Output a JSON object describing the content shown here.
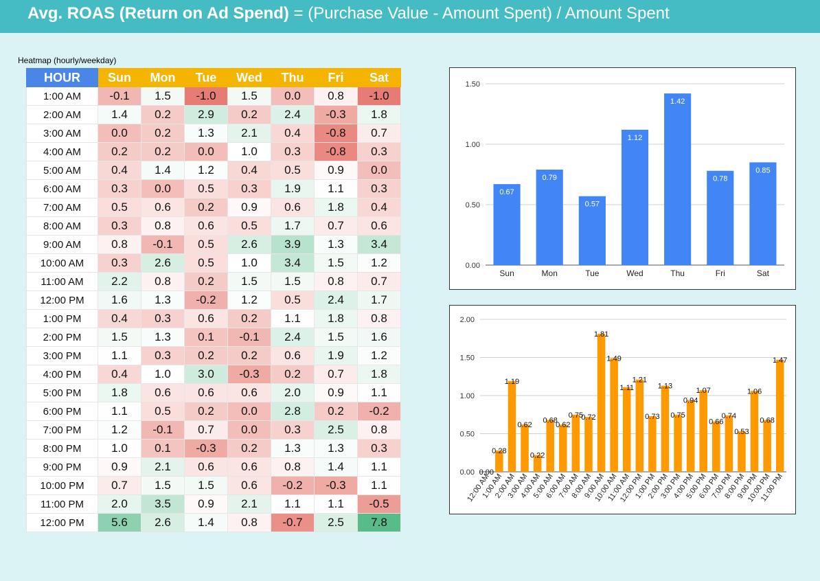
{
  "header": {
    "title_bold": "Avg. ROAS (Return on Ad Spend)",
    "title_rest": " = (Purchase Value - Amount Spent) / Amount Spent"
  },
  "heatmap": {
    "title": "Heatmap (hourly/weekday)",
    "hour_header": "HOUR",
    "days": [
      "Sun",
      "Mon",
      "Tue",
      "Wed",
      "Thu",
      "Fri",
      "Sat"
    ],
    "colors": {
      "neg": "#e67c73",
      "mid": "#ffffff",
      "pos": "#57bb8a",
      "header_day": "#f4b400",
      "header_hour": "#4a86e8"
    },
    "rows": [
      {
        "hour": "1:00 AM",
        "values": [
          -0.1,
          1.5,
          -1.0,
          1.5,
          0.0,
          0.8,
          -1.0
        ]
      },
      {
        "hour": "2:00 AM",
        "values": [
          1.4,
          0.2,
          2.9,
          0.2,
          2.4,
          -0.3,
          1.8
        ]
      },
      {
        "hour": "3:00 AM",
        "values": [
          0.0,
          0.2,
          1.3,
          2.1,
          0.4,
          -0.8,
          0.7
        ]
      },
      {
        "hour": "4:00 AM",
        "values": [
          0.2,
          0.2,
          0.0,
          1.0,
          0.3,
          -0.8,
          0.3
        ]
      },
      {
        "hour": "5:00 AM",
        "values": [
          0.4,
          1.4,
          1.2,
          0.4,
          0.5,
          0.9,
          0.0
        ]
      },
      {
        "hour": "6:00 AM",
        "values": [
          0.3,
          0.0,
          0.5,
          0.3,
          1.9,
          1.1,
          0.3
        ]
      },
      {
        "hour": "7:00 AM",
        "values": [
          0.5,
          0.6,
          0.2,
          0.9,
          0.6,
          1.8,
          0.4
        ]
      },
      {
        "hour": "8:00 AM",
        "values": [
          0.3,
          0.8,
          0.6,
          0.5,
          1.7,
          0.7,
          0.6
        ]
      },
      {
        "hour": "9:00 AM",
        "values": [
          0.8,
          -0.1,
          0.5,
          2.6,
          3.9,
          1.3,
          3.4
        ]
      },
      {
        "hour": "10:00 AM",
        "values": [
          0.3,
          2.6,
          0.5,
          1.0,
          3.4,
          1.5,
          1.2
        ]
      },
      {
        "hour": "11:00 AM",
        "values": [
          2.2,
          0.8,
          0.2,
          1.5,
          1.5,
          0.8,
          0.7
        ]
      },
      {
        "hour": "12:00 PM",
        "values": [
          1.6,
          1.3,
          -0.2,
          1.2,
          0.5,
          2.4,
          1.7
        ]
      },
      {
        "hour": "1:00 PM",
        "values": [
          0.4,
          0.3,
          0.6,
          0.2,
          1.1,
          1.8,
          0.8
        ]
      },
      {
        "hour": "2:00 PM",
        "values": [
          1.5,
          1.3,
          0.1,
          -0.1,
          2.4,
          1.5,
          1.6
        ]
      },
      {
        "hour": "3:00 PM",
        "values": [
          1.1,
          0.3,
          0.2,
          0.2,
          0.6,
          1.9,
          1.2
        ]
      },
      {
        "hour": "4:00 PM",
        "values": [
          0.4,
          1.0,
          3.0,
          -0.3,
          0.2,
          0.7,
          1.8
        ]
      },
      {
        "hour": "5:00 PM",
        "values": [
          1.8,
          0.6,
          0.6,
          0.6,
          2.0,
          0.9,
          1.1
        ]
      },
      {
        "hour": "6:00 PM",
        "values": [
          1.1,
          0.5,
          0.2,
          0.0,
          2.8,
          0.2,
          -0.2
        ]
      },
      {
        "hour": "7:00 PM",
        "values": [
          1.2,
          -0.1,
          0.7,
          0.0,
          0.3,
          2.5,
          0.8
        ]
      },
      {
        "hour": "8:00 PM",
        "values": [
          1.0,
          0.1,
          -0.3,
          0.2,
          1.3,
          1.3,
          0.3
        ]
      },
      {
        "hour": "9:00 PM",
        "values": [
          0.9,
          2.1,
          0.6,
          0.6,
          0.8,
          1.4,
          1.1
        ]
      },
      {
        "hour": "10:00 PM",
        "values": [
          0.7,
          1.5,
          1.5,
          0.6,
          -0.2,
          -0.3,
          1.1
        ]
      },
      {
        "hour": "11:00 PM",
        "values": [
          2.0,
          3.5,
          0.9,
          2.1,
          1.1,
          1.1,
          -0.5
        ]
      },
      {
        "hour": "12:00 PM",
        "values": [
          5.6,
          2.6,
          1.4,
          0.8,
          -0.7,
          2.5,
          7.8
        ]
      }
    ]
  },
  "chart_data": [
    {
      "type": "bar",
      "categories": [
        "Sun",
        "Mon",
        "Tue",
        "Wed",
        "Thu",
        "Fri",
        "Sat"
      ],
      "values": [
        0.67,
        0.79,
        0.57,
        1.12,
        1.42,
        0.78,
        0.85
      ],
      "labels": [
        "0.67",
        "0.79",
        "0.57",
        "1.12",
        "1.42",
        "0.78",
        "0.85"
      ],
      "yticks": [
        "0.00",
        "0.50",
        "1.00",
        "1.50"
      ],
      "ytick_values": [
        0,
        0.5,
        1.0,
        1.5
      ],
      "ylim": [
        0,
        1.5
      ],
      "color": "#4285f4",
      "grid": true
    },
    {
      "type": "bar",
      "categories": [
        "12:00 AM",
        "1:00 AM",
        "2:00 AM",
        "3:00 AM",
        "4:00 AM",
        "5:00 AM",
        "6:00 AM",
        "7:00 AM",
        "8:00 AM",
        "9:00 AM",
        "10:00 AM",
        "11:00 AM",
        "12:00 PM",
        "1:00 PM",
        "2:00 PM",
        "3:00 PM",
        "4:00 PM",
        "5:00 PM",
        "6:00 PM",
        "7:00 PM",
        "8:00 PM",
        "9:00 PM",
        "10:00 PM",
        "11:00 PM"
      ],
      "values": [
        0.0,
        0.28,
        1.19,
        0.62,
        0.22,
        0.68,
        0.62,
        0.75,
        0.72,
        1.81,
        1.49,
        1.11,
        1.21,
        0.73,
        1.13,
        0.75,
        0.94,
        1.07,
        0.66,
        0.74,
        0.53,
        1.06,
        0.68,
        1.47
      ],
      "labels": [
        "0.00",
        "0.28",
        "1.19",
        "0.62",
        "0.22",
        "0.68",
        "0.62",
        "0.75",
        "0.72",
        "1.81",
        "1.49",
        "1.11",
        "1.21",
        "0.73",
        "1.13",
        "0.75",
        "0.94",
        "1.07",
        "0.66",
        "0.74",
        "0.53",
        "1.06",
        "0.68",
        "1.47"
      ],
      "yticks": [
        "0.00",
        "0.50",
        "1.00",
        "1.50",
        "2.00"
      ],
      "ytick_values": [
        0,
        0.5,
        1.0,
        1.5,
        2.0
      ],
      "ylim": [
        0,
        2.0
      ],
      "color": "#ff9900",
      "grid": true
    }
  ]
}
